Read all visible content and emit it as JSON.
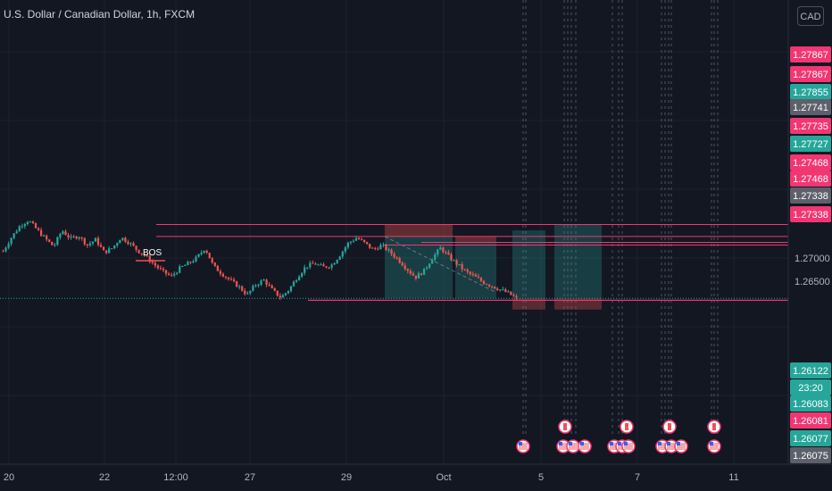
{
  "title": "U.S. Dollar / Canadian Dollar, 1h, FXCM",
  "currency_button": "CAD",
  "colors": {
    "background": "#131722",
    "up": "#26a69a",
    "down": "#ef5350",
    "level_line": "#f23672",
    "target_zone": "#26a69a",
    "stop_zone": "#ef5350",
    "price_label_pink": "#f23672",
    "price_label_teal": "#26a69a",
    "price_label_gray": "#5d606b",
    "current_price": "#089981"
  },
  "chart_data": {
    "type": "candlestick",
    "title": "U.S. Dollar / Canadian Dollar, 1h, FXCM",
    "x_tick_labels": [
      "20",
      "22",
      "12:00",
      "27",
      "29",
      "Oct",
      "5",
      "7",
      "11"
    ],
    "y_tick_labels": [
      "1.27000",
      "1.26500"
    ],
    "y_range": [
      1.26,
      1.281
    ],
    "price_labels": [
      {
        "value": "1.27867",
        "style": "pink"
      },
      {
        "value": "1.27867",
        "style": "pink"
      },
      {
        "value": "1.27855",
        "style": "teal"
      },
      {
        "value": "1.27741",
        "style": "gray"
      },
      {
        "value": "1.27735",
        "style": "pink"
      },
      {
        "value": "1.27727",
        "style": "teal"
      },
      {
        "value": "1.27468",
        "style": "pink"
      },
      {
        "value": "1.27468",
        "style": "pink"
      },
      {
        "value": "1.27338",
        "style": "gray"
      },
      {
        "value": "1.27338",
        "style": "pink"
      },
      {
        "value": "1.26122",
        "style": "teal"
      },
      {
        "value": "23:20",
        "style": "teal"
      },
      {
        "value": "1.26083",
        "style": "teal"
      },
      {
        "value": "1.26081",
        "style": "pink"
      },
      {
        "value": "1.26077",
        "style": "teal"
      },
      {
        "value": "1.26075",
        "style": "gray"
      }
    ],
    "horizontal_levels": [
      1.27727,
      1.27468,
      1.27338,
      1.26122,
      1.26083,
      1.26081
    ],
    "annotations": [
      {
        "text": "BOS"
      }
    ],
    "positions": [
      {
        "side": "short",
        "entry": 1.27468,
        "stop": 1.27727,
        "target": 1.26122
      },
      {
        "side": "short",
        "entry": 1.27338,
        "stop": 1.27468,
        "target": 1.26122
      },
      {
        "side": "long",
        "entry": 1.26122,
        "stop": 1.26081,
        "target": 1.276
      },
      {
        "side": "long",
        "entry": 1.26122,
        "stop": 1.26081,
        "target": 1.27727
      }
    ],
    "candles_close_path": [
      1.2715,
      1.2745,
      1.277,
      1.2782,
      1.2762,
      1.2742,
      1.2725,
      1.276,
      1.2742,
      1.2748,
      1.2728,
      1.274,
      1.2712,
      1.2722,
      1.2745,
      1.2733,
      1.2716,
      1.2703,
      1.2685,
      1.267,
      1.266,
      1.2678,
      1.2688,
      1.27,
      1.2722,
      1.2682,
      1.2666,
      1.2651,
      1.2638,
      1.262,
      1.2642,
      1.2652,
      1.263,
      1.2614,
      1.2632,
      1.266,
      1.2682,
      1.2688,
      1.268,
      1.2684,
      1.2706,
      1.2732,
      1.2744,
      1.2732,
      1.2718,
      1.2728,
      1.2712,
      1.2696,
      1.2676,
      1.2658,
      1.2672,
      1.27,
      1.2722,
      1.2702,
      1.2686,
      1.267,
      1.266,
      1.2648,
      1.264,
      1.2632,
      1.2624,
      1.2612
    ]
  }
}
